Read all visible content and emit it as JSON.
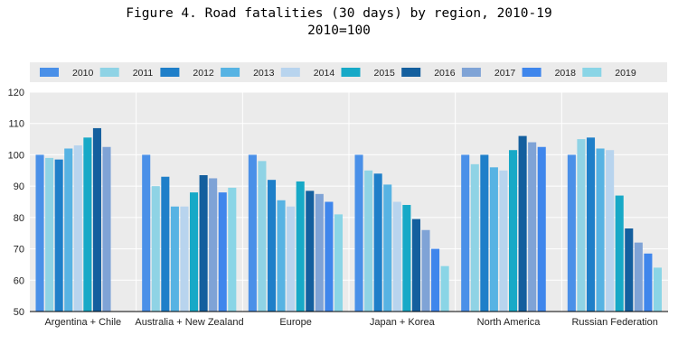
{
  "chart_data": {
    "type": "bar",
    "title": "Figure 4. Road fatalities (30 days) by region, 2010-19",
    "subtitle": "2010=100",
    "xlabel": "",
    "ylabel": "",
    "ylim": [
      50,
      120
    ],
    "yticks": [
      50,
      60,
      70,
      80,
      90,
      100,
      110,
      120
    ],
    "grid": true,
    "legend_position": "top",
    "categories": [
      "Argentina + Chile",
      "Australia + New Zealand",
      "Europe",
      "Japan + Korea",
      "North America",
      "Russian Federation"
    ],
    "series": [
      {
        "name": "2010",
        "color": "#4a90e8",
        "values": [
          100,
          100,
          100,
          100,
          100,
          100
        ]
      },
      {
        "name": "2011",
        "color": "#8fd3e5",
        "values": [
          99,
          90,
          98,
          95,
          97,
          105
        ]
      },
      {
        "name": "2012",
        "color": "#1f7fc9",
        "values": [
          98.5,
          93,
          92,
          94,
          100,
          105.5
        ]
      },
      {
        "name": "2013",
        "color": "#57b3e3",
        "values": [
          102,
          83.5,
          85.5,
          90.5,
          96,
          102
        ]
      },
      {
        "name": "2014",
        "color": "#b8d4ee",
        "values": [
          103,
          83.5,
          83.5,
          85,
          95,
          101.5
        ]
      },
      {
        "name": "2015",
        "color": "#17a9c7",
        "values": [
          105.5,
          88,
          91.5,
          84,
          101.5,
          87
        ]
      },
      {
        "name": "2016",
        "color": "#145f9e",
        "values": [
          108.5,
          93.5,
          88.5,
          79.5,
          106,
          76.5
        ]
      },
      {
        "name": "2017",
        "color": "#7fa3d6",
        "values": [
          102.5,
          92.5,
          87.5,
          76,
          104,
          72
        ]
      },
      {
        "name": "2018",
        "color": "#3f86ec",
        "values": [
          null,
          88,
          85,
          70,
          102.5,
          68.5
        ]
      },
      {
        "name": "2019",
        "color": "#8ad5e6",
        "values": [
          null,
          89.5,
          81,
          64.5,
          null,
          64
        ]
      }
    ]
  }
}
